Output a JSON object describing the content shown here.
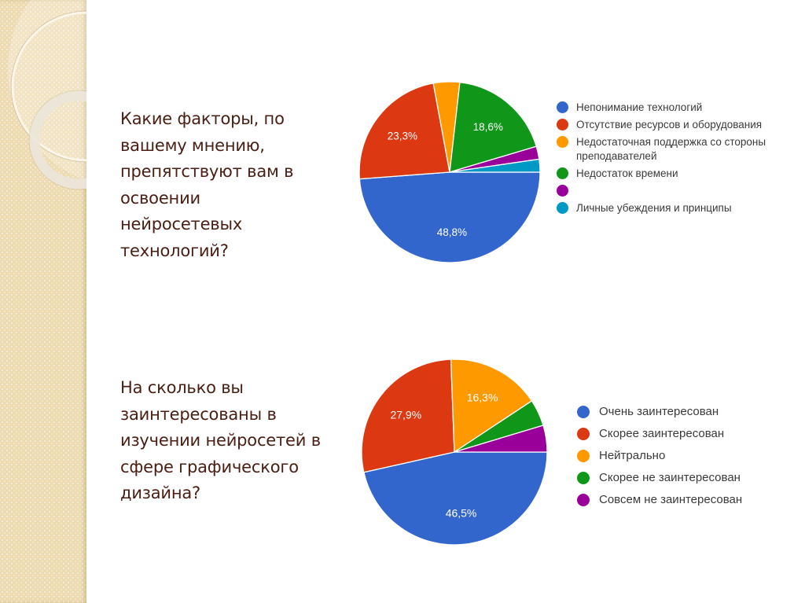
{
  "slide": {
    "background": "#ffffff",
    "side_strip_color": "#f3e3bd"
  },
  "question1": {
    "text": "Какие факторы, по\nвашему мнению,\nпрепятствуют вам в\nосвоении\nнейросетевых\nтехнологий?"
  },
  "question2": {
    "text": "На сколько вы\nзаинтересованы в\nизучении нейросетей в\nсфере графического\nдизайна?"
  },
  "chart_data": [
    {
      "type": "pie",
      "title": "Какие факторы, по вашему мнению, препятствуют вам в освоении нейросетевых технологий?",
      "categories": [
        "Непонимание технологий",
        "Отсутствие ресурсов и оборудования",
        "Недостаточная поддержка со стороны преподавателей",
        "Недостаток времени",
        "",
        "Личные убеждения и принципы"
      ],
      "values": [
        48.8,
        23.3,
        4.7,
        18.6,
        2.3,
        2.3
      ],
      "labels": [
        "48,8%",
        "23,3%",
        "",
        "18,6%",
        "",
        ""
      ],
      "colors": [
        "#3366cc",
        "#dc3912",
        "#ff9900",
        "#109618",
        "#990099",
        "#0099c6"
      ],
      "legend_position": "right",
      "start_angle": "3 o'clock, clockwise"
    },
    {
      "type": "pie",
      "title": "На сколько вы заинтересованы в изучении нейросетей в сфере графического дизайна?",
      "categories": [
        "Очень заинтересован",
        "Скорее заинтересован",
        "Нейтрально",
        "Скорее не заинтересован",
        "Совсем не заинтересован"
      ],
      "values": [
        46.5,
        27.9,
        16.3,
        4.65,
        4.65
      ],
      "labels": [
        "46,5%",
        "27,9%",
        "16,3%",
        "",
        ""
      ],
      "colors": [
        "#3366cc",
        "#dc3912",
        "#ff9900",
        "#109618",
        "#990099"
      ],
      "legend_position": "right",
      "start_angle": "3 o'clock, clockwise"
    }
  ],
  "legend1": {
    "items": [
      {
        "label": "Непонимание технологий",
        "color": "#3366cc"
      },
      {
        "label": "Отсутствие ресурсов и оборудования",
        "color": "#dc3912"
      },
      {
        "label": "Недостаточная поддержка со стороны преподавателей",
        "color": "#ff9900"
      },
      {
        "label": "Недостаток времени",
        "color": "#109618"
      },
      {
        "label": "",
        "color": "#990099"
      },
      {
        "label": "Личные убеждения и принципы",
        "color": "#0099c6"
      }
    ]
  },
  "legend2": {
    "items": [
      {
        "label": "Очень заинтересован",
        "color": "#3366cc"
      },
      {
        "label": "Скорее заинтересован",
        "color": "#dc3912"
      },
      {
        "label": "Нейтрально",
        "color": "#ff9900"
      },
      {
        "label": "Скорее не заинтересован",
        "color": "#109618"
      },
      {
        "label": "Совсем не заинтересован",
        "color": "#990099"
      }
    ]
  }
}
